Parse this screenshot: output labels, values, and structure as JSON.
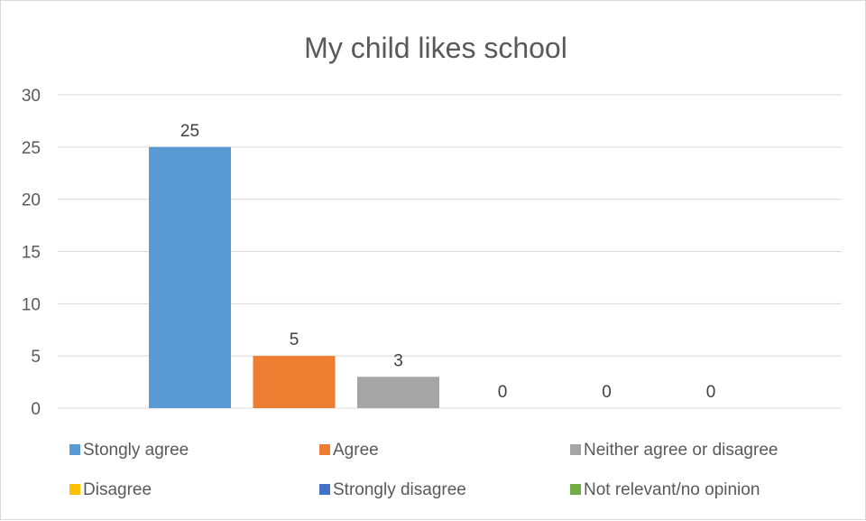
{
  "chart_data": {
    "type": "bar",
    "title": "My child likes school",
    "xlabel": "",
    "ylabel": "",
    "ylim": [
      0,
      30
    ],
    "yticks": [
      0,
      5,
      10,
      15,
      20,
      25,
      30
    ],
    "grid": true,
    "legend_position": "bottom",
    "series": [
      {
        "name": "Stongly agree",
        "value": 25,
        "color": "#5B9BD5"
      },
      {
        "name": "Agree",
        "value": 5,
        "color": "#ED7D31"
      },
      {
        "name": "Neither agree or disagree",
        "value": 3,
        "color": "#A5A5A5"
      },
      {
        "name": "Disagree",
        "value": 0,
        "color": "#FFC000"
      },
      {
        "name": "Strongly disagree",
        "value": 0,
        "color": "#4472C4"
      },
      {
        "name": "Not relevant/no opinion",
        "value": 0,
        "color": "#70AD47"
      }
    ]
  }
}
